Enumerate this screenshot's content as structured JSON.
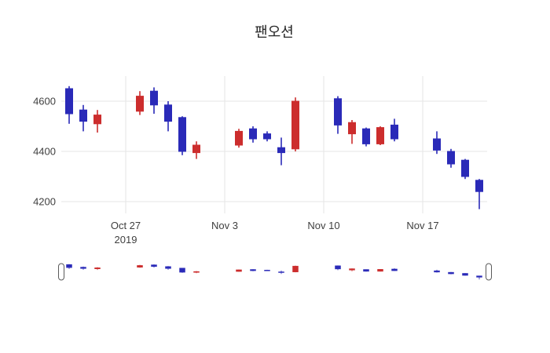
{
  "chart_data": {
    "type": "candlestick",
    "title": "팬오션",
    "xlabel": "",
    "ylabel": "",
    "ylim": [
      4150,
      4700
    ],
    "grid": true,
    "legend": "none",
    "rangeslider": true,
    "y_ticks": [
      4600,
      4400,
      4200
    ],
    "x_ticks": [
      {
        "date": "2019-10-27",
        "label": "Oct 27",
        "sublabel": "2019"
      },
      {
        "date": "2019-11-03",
        "label": "Nov 3"
      },
      {
        "date": "2019-11-10",
        "label": "Nov 10"
      },
      {
        "date": "2019-11-17",
        "label": "Nov 17"
      }
    ],
    "colors": {
      "increasing": "#cc2d2d",
      "decreasing": "#2a2ab8",
      "grid": "#e6e6e6",
      "axis_text": "#3f3f3f",
      "background": "#ffffff",
      "handle_border": "#5a5a5a"
    },
    "ohlc": [
      {
        "date": "2019-10-23",
        "open": 4650,
        "high": 4660,
        "low": 4510,
        "close": 4550
      },
      {
        "date": "2019-10-24",
        "open": 4565,
        "high": 4585,
        "low": 4480,
        "close": 4520
      },
      {
        "date": "2019-10-25",
        "open": 4510,
        "high": 4565,
        "low": 4475,
        "close": 4545
      },
      {
        "date": "2019-10-28",
        "open": 4560,
        "high": 4640,
        "low": 4545,
        "close": 4620
      },
      {
        "date": "2019-10-29",
        "open": 4640,
        "high": 4655,
        "low": 4550,
        "close": 4585
      },
      {
        "date": "2019-10-30",
        "open": 4585,
        "high": 4600,
        "low": 4480,
        "close": 4520
      },
      {
        "date": "2019-10-31",
        "open": 4535,
        "high": 4540,
        "low": 4385,
        "close": 4400
      },
      {
        "date": "2019-11-01",
        "open": 4395,
        "high": 4440,
        "low": 4370,
        "close": 4425
      },
      {
        "date": "2019-11-04",
        "open": 4425,
        "high": 4490,
        "low": 4415,
        "close": 4480
      },
      {
        "date": "2019-11-05",
        "open": 4490,
        "high": 4500,
        "low": 4435,
        "close": 4450
      },
      {
        "date": "2019-11-06",
        "open": 4470,
        "high": 4480,
        "low": 4440,
        "close": 4450
      },
      {
        "date": "2019-11-07",
        "open": 4415,
        "high": 4455,
        "low": 4345,
        "close": 4395
      },
      {
        "date": "2019-11-08",
        "open": 4410,
        "high": 4615,
        "low": 4400,
        "close": 4600
      },
      {
        "date": "2019-11-11",
        "open": 4610,
        "high": 4620,
        "low": 4470,
        "close": 4505
      },
      {
        "date": "2019-11-12",
        "open": 4470,
        "high": 4525,
        "low": 4430,
        "close": 4515
      },
      {
        "date": "2019-11-13",
        "open": 4490,
        "high": 4495,
        "low": 4420,
        "close": 4430
      },
      {
        "date": "2019-11-14",
        "open": 4430,
        "high": 4500,
        "low": 4425,
        "close": 4495
      },
      {
        "date": "2019-11-15",
        "open": 4505,
        "high": 4530,
        "low": 4440,
        "close": 4450
      },
      {
        "date": "2019-11-18",
        "open": 4450,
        "high": 4480,
        "low": 4390,
        "close": 4405
      },
      {
        "date": "2019-11-19",
        "open": 4400,
        "high": 4410,
        "low": 4335,
        "close": 4350
      },
      {
        "date": "2019-11-20",
        "open": 4365,
        "high": 4370,
        "low": 4290,
        "close": 4300
      },
      {
        "date": "2019-11-21",
        "open": 4285,
        "high": 4290,
        "low": 4170,
        "close": 4240
      }
    ]
  }
}
